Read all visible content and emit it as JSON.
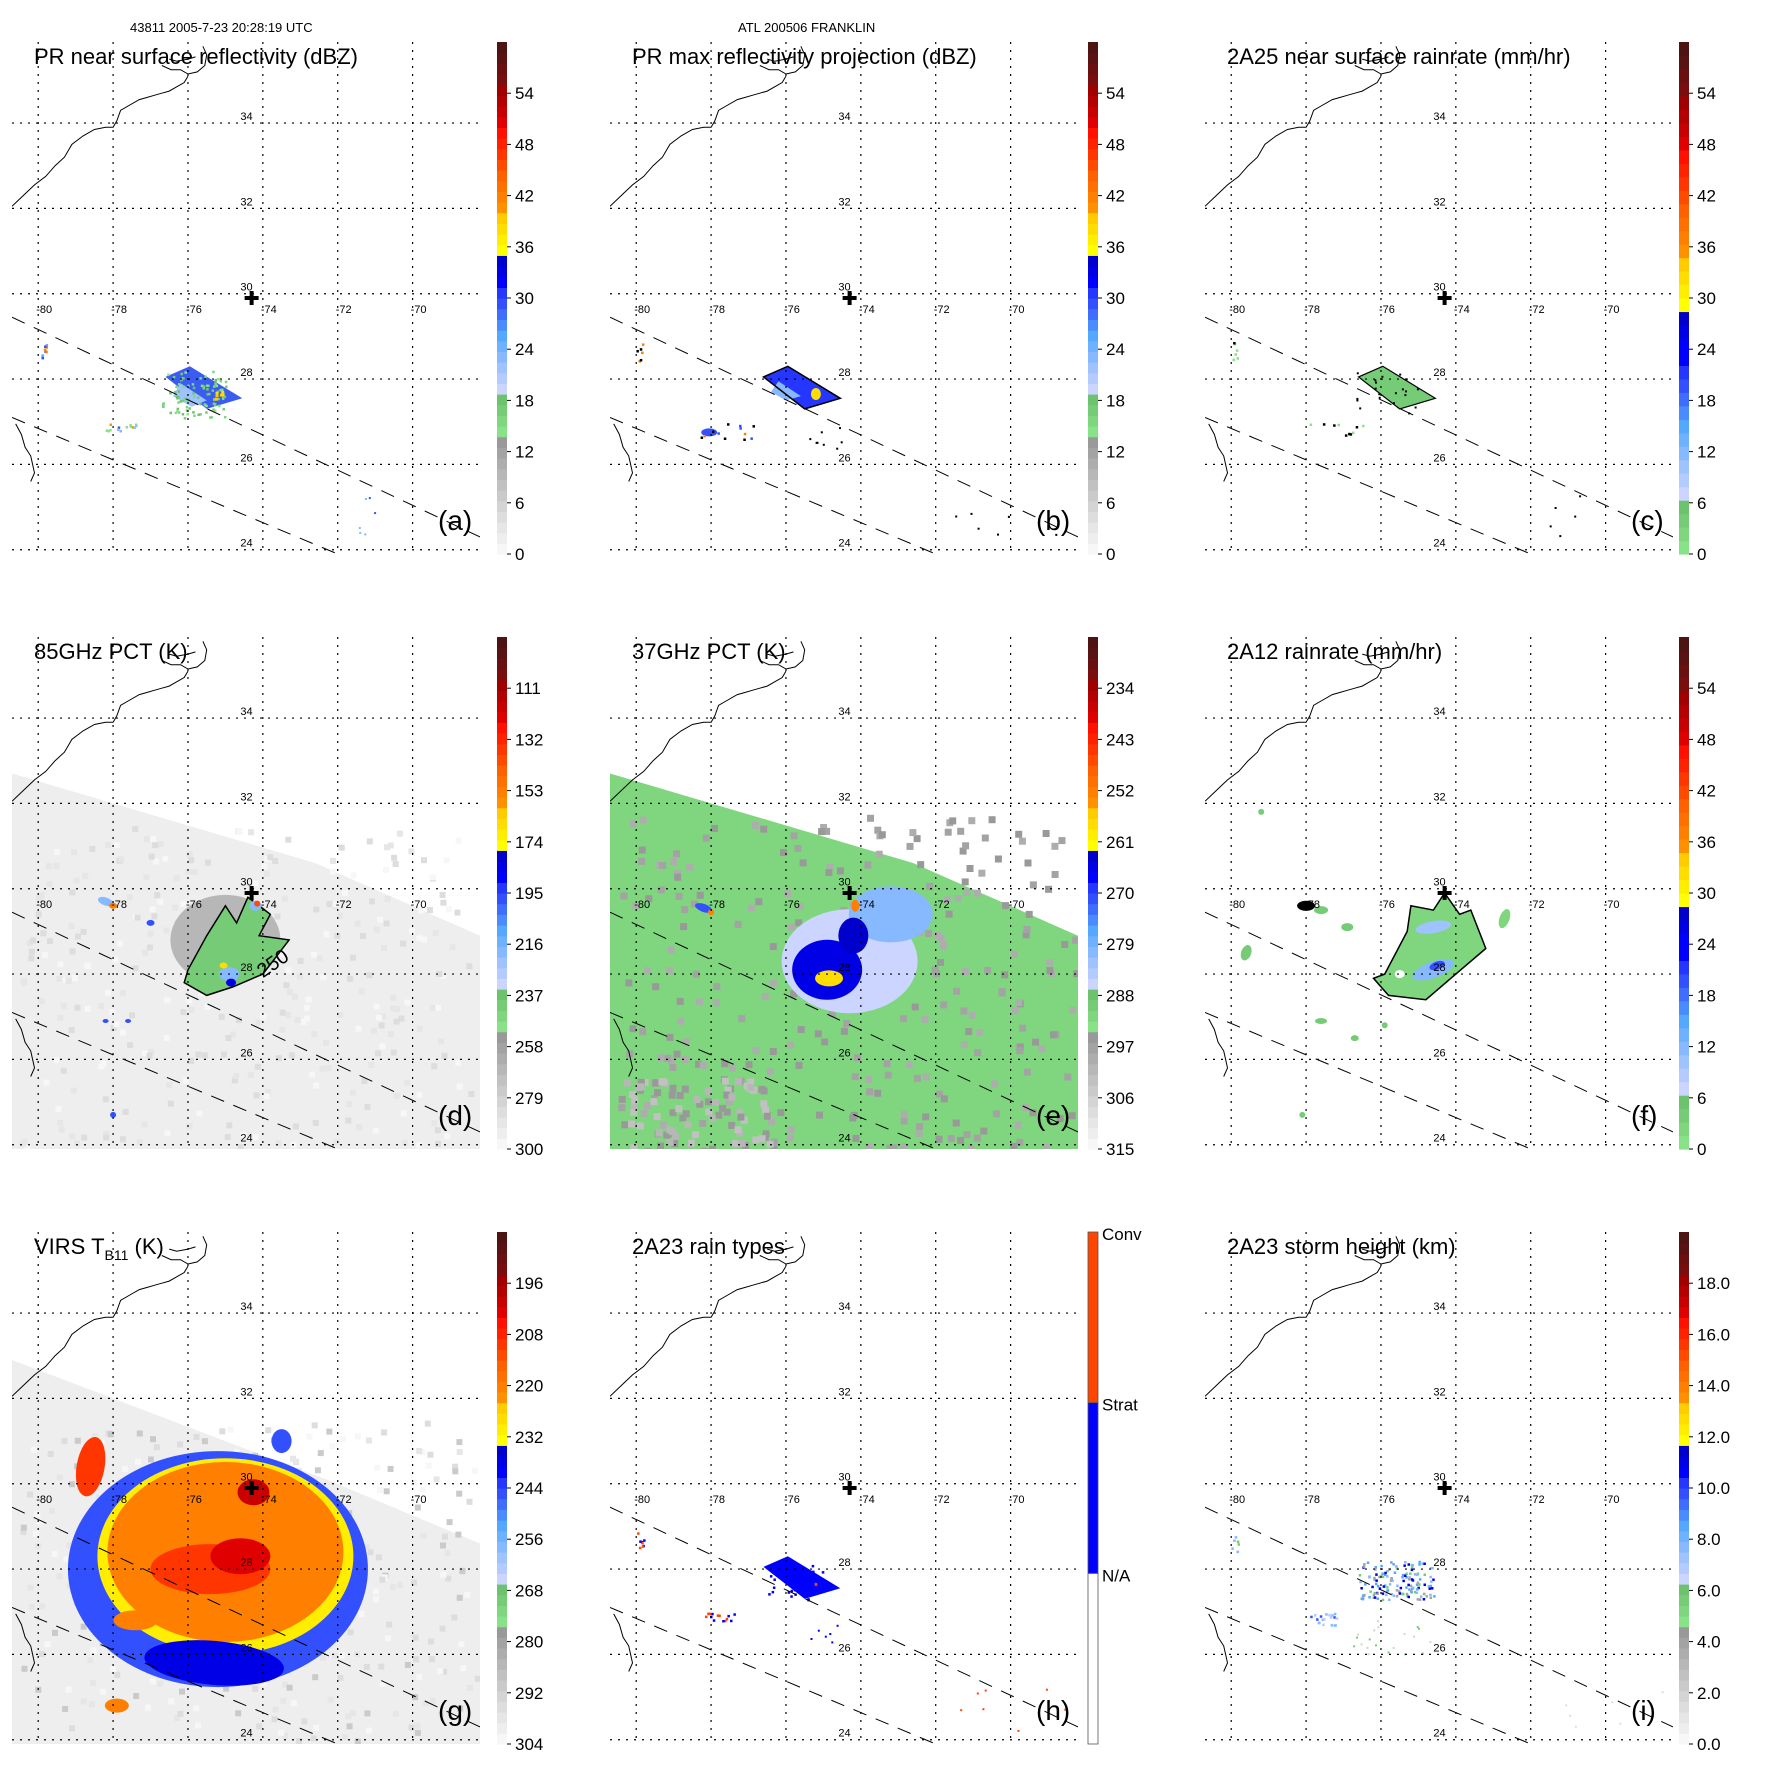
{
  "header": {
    "left": "43811 2005-7-23 20:28:19 UTC",
    "center": "ATL 200506 FRANKLIN"
  },
  "chart_data": [
    {
      "type": "heatmap",
      "panel": "a",
      "title": "PR near surface reflectivity (dBZ)",
      "label": "(a)",
      "lon_ticks": [
        "-80",
        "-78",
        "-76",
        "-74",
        "-72",
        "-70"
      ],
      "lat_ticks": [
        "34",
        "32",
        "30",
        "28",
        "26",
        "24"
      ],
      "xlim": [
        -80.7,
        -68.2
      ],
      "ylim": [
        23.9,
        35.9
      ],
      "colorbar": {
        "kind": "continuous",
        "ticks": [
          "0",
          "6",
          "12",
          "18",
          "24",
          "30",
          "36",
          "42",
          "48",
          "54"
        ],
        "range": [
          0,
          60
        ]
      },
      "storm_center": {
        "lon": -74.3,
        "lat": 29.9
      },
      "swath": "pr",
      "field": "pr_surface"
    },
    {
      "type": "heatmap",
      "panel": "b",
      "title": "PR max reflectivity projection (dBZ)",
      "label": "(b)",
      "lon_ticks": [
        "-80",
        "-78",
        "-76",
        "-74",
        "-72",
        "-70"
      ],
      "lat_ticks": [
        "34",
        "32",
        "30",
        "28",
        "26",
        "24"
      ],
      "xlim": [
        -80.7,
        -68.2
      ],
      "ylim": [
        23.9,
        35.9
      ],
      "colorbar": {
        "kind": "continuous",
        "ticks": [
          "0",
          "6",
          "12",
          "18",
          "24",
          "30",
          "36",
          "42",
          "48",
          "54"
        ],
        "range": [
          0,
          60
        ]
      },
      "storm_center": {
        "lon": -74.3,
        "lat": 29.9
      },
      "swath": "pr",
      "field": "pr_max"
    },
    {
      "type": "heatmap",
      "panel": "c",
      "title": "2A25 near surface rainrate (mm/hr)",
      "label": "(c)",
      "lon_ticks": [
        "-80",
        "-78",
        "-76",
        "-74",
        "-72",
        "-70"
      ],
      "lat_ticks": [
        "34",
        "32",
        "30",
        "28",
        "26",
        "24"
      ],
      "xlim": [
        -80.7,
        -68.2
      ],
      "ylim": [
        23.9,
        35.9
      ],
      "colorbar": {
        "kind": "continuous_nogray",
        "ticks": [
          "0",
          "6",
          "12",
          "18",
          "24",
          "30",
          "36",
          "42",
          "48",
          "54"
        ],
        "range": [
          0,
          60
        ]
      },
      "storm_center": {
        "lon": -74.3,
        "lat": 29.9
      },
      "swath": "pr",
      "field": "rain_2a25"
    },
    {
      "type": "heatmap",
      "panel": "d",
      "title": "85GHz PCT (K)",
      "label": "(d)",
      "lon_ticks": [
        "-80",
        "-78",
        "-76",
        "-74",
        "-72",
        "-70"
      ],
      "lat_ticks": [
        "34",
        "32",
        "30",
        "28",
        "26",
        "24"
      ],
      "xlim": [
        -80.7,
        -68.2
      ],
      "ylim": [
        23.9,
        35.9
      ],
      "colorbar": {
        "kind": "continuous",
        "ticks": [
          "300",
          "279",
          "258",
          "237",
          "216",
          "195",
          "174",
          "153",
          "132",
          "111"
        ],
        "range": [
          300,
          90
        ]
      },
      "contour_label": "250",
      "storm_center": {
        "lon": -74.3,
        "lat": 29.9
      },
      "swath": "tmi",
      "field": "pct85"
    },
    {
      "type": "heatmap",
      "panel": "e",
      "title": "37GHz PCT (K)",
      "label": "(e)",
      "lon_ticks": [
        "-80",
        "-78",
        "-76",
        "-74",
        "-72",
        "-70"
      ],
      "lat_ticks": [
        "34",
        "32",
        "30",
        "28",
        "26",
        "24"
      ],
      "xlim": [
        -80.7,
        -68.2
      ],
      "ylim": [
        23.9,
        35.9
      ],
      "colorbar": {
        "kind": "continuous",
        "ticks": [
          "315",
          "306",
          "297",
          "288",
          "279",
          "270",
          "261",
          "252",
          "243",
          "234"
        ],
        "range": [
          315,
          225
        ]
      },
      "storm_center": {
        "lon": -74.3,
        "lat": 29.9
      },
      "swath": "tmi",
      "field": "pct37"
    },
    {
      "type": "heatmap",
      "panel": "f",
      "title": "2A12 rainrate (mm/hr)",
      "label": "(f)",
      "lon_ticks": [
        "-80",
        "-78",
        "-76",
        "-74",
        "-72",
        "-70"
      ],
      "lat_ticks": [
        "34",
        "32",
        "30",
        "28",
        "26",
        "24"
      ],
      "xlim": [
        -80.7,
        -68.2
      ],
      "ylim": [
        23.9,
        35.9
      ],
      "colorbar": {
        "kind": "continuous_nogray",
        "ticks": [
          "0",
          "6",
          "12",
          "18",
          "24",
          "30",
          "36",
          "42",
          "48",
          "54"
        ],
        "range": [
          0,
          60
        ]
      },
      "storm_center": {
        "lon": -74.3,
        "lat": 29.9
      },
      "swath": "tmi",
      "field": "rain_2a12"
    },
    {
      "type": "heatmap",
      "panel": "g",
      "title": "VIRS T",
      "title_sub": "B11",
      "title_tail": " (K)",
      "label": "(g)",
      "lon_ticks": [
        "-80",
        "-78",
        "-76",
        "-74",
        "-72",
        "-70"
      ],
      "lat_ticks": [
        "34",
        "32",
        "30",
        "28",
        "26",
        "24"
      ],
      "xlim": [
        -80.7,
        -68.2
      ],
      "ylim": [
        23.9,
        35.9
      ],
      "colorbar": {
        "kind": "continuous",
        "ticks": [
          "304",
          "292",
          "280",
          "268",
          "256",
          "244",
          "232",
          "220",
          "208",
          "196"
        ],
        "range": [
          304,
          184
        ]
      },
      "storm_center": {
        "lon": -74.3,
        "lat": 29.9
      },
      "swath": "virs",
      "field": "virs"
    },
    {
      "type": "heatmap",
      "panel": "h",
      "title": "2A23 rain types",
      "label": "(h)",
      "lon_ticks": [
        "-80",
        "-78",
        "-76",
        "-74",
        "-72",
        "-70"
      ],
      "lat_ticks": [
        "34",
        "32",
        "30",
        "28",
        "26",
        "24"
      ],
      "xlim": [
        -80.7,
        -68.2
      ],
      "ylim": [
        23.9,
        35.9
      ],
      "colorbar": {
        "kind": "categorical",
        "categories": [
          "N/A",
          "Strat",
          "Conv"
        ],
        "colors": [
          "#ffffff",
          "#0000ff",
          "#ff4500"
        ]
      },
      "storm_center": {
        "lon": -74.3,
        "lat": 29.9
      },
      "swath": "pr",
      "field": "raintype"
    },
    {
      "type": "heatmap",
      "panel": "i",
      "title": "2A23 storm height (km)",
      "label": "(i)",
      "lon_ticks": [
        "-80",
        "-78",
        "-76",
        "-74",
        "-72",
        "-70"
      ],
      "lat_ticks": [
        "34",
        "32",
        "30",
        "28",
        "26",
        "24"
      ],
      "xlim": [
        -80.7,
        -68.2
      ],
      "ylim": [
        23.9,
        35.9
      ],
      "colorbar": {
        "kind": "continuous",
        "ticks": [
          "0.0",
          "2.0",
          "4.0",
          "6.0",
          "8.0",
          "10.0",
          "12.0",
          "14.0",
          "16.0",
          "18.0"
        ],
        "range": [
          0,
          20
        ]
      },
      "storm_center": {
        "lon": -74.3,
        "lat": 29.9
      },
      "swath": "pr",
      "field": "stormheight"
    }
  ],
  "palette": {
    "gray": [
      "#f7f7f7",
      "#eeeeee",
      "#e6e6e6",
      "#dddddd",
      "#d4d4d4",
      "#cacaca",
      "#c1c1c1",
      "#b7b7b7",
      "#adadad",
      "#a3a3a3",
      "#999999"
    ],
    "green": [
      "#88e288",
      "#7fd67f",
      "#76cc76",
      "#6dc36d"
    ],
    "blue": [
      "#cbd5ff",
      "#b4cbff",
      "#9ec3ff",
      "#86b9ff",
      "#6eb1ff",
      "#55a8ff",
      "#4a8bff",
      "#3f6eff",
      "#3350ff",
      "#2436ff",
      "#0000ff",
      "#0000e6",
      "#0000cc"
    ],
    "yellow": [
      "#ffff00",
      "#ffee00",
      "#ffdd00",
      "#ffcc00"
    ],
    "orange": [
      "#ff9000",
      "#ff8000",
      "#ff7000",
      "#ff6000"
    ],
    "red": [
      "#ff4a00",
      "#ff3600",
      "#ff2200",
      "#ff1000",
      "#e00000",
      "#c80000",
      "#b40000",
      "#a00000"
    ],
    "darkred": [
      "#7a0e0e",
      "#6a1010",
      "#5a1212",
      "#4e1414"
    ]
  }
}
